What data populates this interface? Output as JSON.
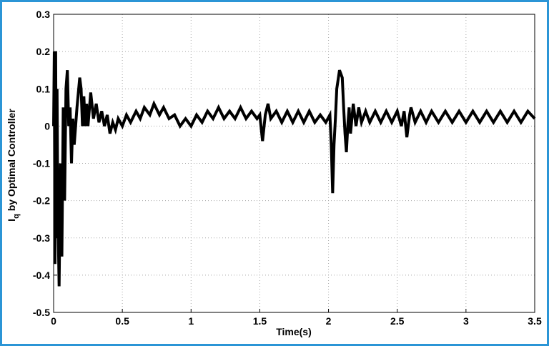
{
  "chart_data": {
    "type": "line",
    "xlabel": "Time(s)",
    "ylabel": {
      "main": "I",
      "sub": "q",
      "rest": " by Optimal Controller"
    },
    "xlim": [
      0,
      3.5
    ],
    "ylim": [
      -0.5,
      0.3
    ],
    "xticks": [
      0,
      0.5,
      1,
      1.5,
      2,
      2.5,
      3,
      3.5
    ],
    "yticks": [
      0.3,
      0.2,
      0.1,
      0,
      -0.1,
      -0.2,
      -0.3,
      -0.4,
      -0.5
    ],
    "grid": true,
    "color": "#000000",
    "x": [
      0,
      0.005,
      0.01,
      0.015,
      0.02,
      0.025,
      0.03,
      0.04,
      0.05,
      0.06,
      0.07,
      0.08,
      0.09,
      0.1,
      0.11,
      0.12,
      0.13,
      0.14,
      0.15,
      0.17,
      0.19,
      0.2,
      0.21,
      0.22,
      0.23,
      0.24,
      0.25,
      0.27,
      0.29,
      0.31,
      0.33,
      0.35,
      0.37,
      0.39,
      0.41,
      0.43,
      0.45,
      0.47,
      0.5,
      0.53,
      0.56,
      0.6,
      0.63,
      0.66,
      0.7,
      0.73,
      0.77,
      0.8,
      0.84,
      0.88,
      0.92,
      0.96,
      1.0,
      1.04,
      1.08,
      1.12,
      1.16,
      1.2,
      1.24,
      1.28,
      1.32,
      1.36,
      1.4,
      1.44,
      1.48,
      1.5,
      1.52,
      1.54,
      1.56,
      1.58,
      1.62,
      1.66,
      1.7,
      1.74,
      1.78,
      1.82,
      1.86,
      1.9,
      1.94,
      1.98,
      2.01,
      2.02,
      2.03,
      2.04,
      2.05,
      2.06,
      2.08,
      2.1,
      2.11,
      2.12,
      2.13,
      2.14,
      2.15,
      2.16,
      2.18,
      2.2,
      2.22,
      2.24,
      2.27,
      2.3,
      2.34,
      2.38,
      2.42,
      2.46,
      2.5,
      2.53,
      2.55,
      2.57,
      2.59,
      2.6,
      2.63,
      2.67,
      2.71,
      2.75,
      2.8,
      2.85,
      2.9,
      2.95,
      3.0,
      3.05,
      3.1,
      3.15,
      3.2,
      3.25,
      3.3,
      3.35,
      3.4,
      3.45,
      3.5
    ],
    "values": [
      0,
      0.2,
      -0.37,
      0.2,
      -0.3,
      0.1,
      -0.2,
      -0.43,
      -0.1,
      -0.35,
      0.05,
      -0.2,
      0.1,
      0.15,
      0.0,
      0.05,
      -0.1,
      0.02,
      -0.05,
      0.05,
      0.13,
      0.1,
      0.0,
      0.08,
      0.0,
      0.06,
      0.0,
      0.09,
      0.02,
      0.06,
      0.01,
      0.04,
      0.0,
      0.03,
      -0.02,
      0.01,
      -0.01,
      0.02,
      0.0,
      0.03,
      0.01,
      0.04,
      0.02,
      0.05,
      0.03,
      0.06,
      0.03,
      0.05,
      0.02,
      0.03,
      0.0,
      0.02,
      0.0,
      0.03,
      0.01,
      0.04,
      0.02,
      0.05,
      0.02,
      0.04,
      0.02,
      0.05,
      0.02,
      0.04,
      0.02,
      0.03,
      -0.04,
      0.03,
      0.06,
      0.02,
      0.04,
      0.01,
      0.04,
      0.01,
      0.04,
      0.01,
      0.04,
      0.01,
      0.03,
      0.01,
      0.03,
      -0.05,
      -0.18,
      -0.05,
      0.02,
      0.1,
      0.15,
      0.13,
      0.05,
      -0.02,
      -0.07,
      0.0,
      0.05,
      -0.02,
      0.06,
      0.0,
      0.05,
      0.01,
      0.04,
      0.01,
      0.04,
      0.01,
      0.04,
      0.01,
      0.04,
      0.0,
      0.04,
      -0.03,
      0.03,
      0.05,
      0.01,
      0.04,
      0.01,
      0.04,
      0.01,
      0.04,
      0.01,
      0.04,
      0.01,
      0.04,
      0.01,
      0.04,
      0.01,
      0.04,
      0.01,
      0.04,
      0.01,
      0.04,
      0.02
    ]
  }
}
